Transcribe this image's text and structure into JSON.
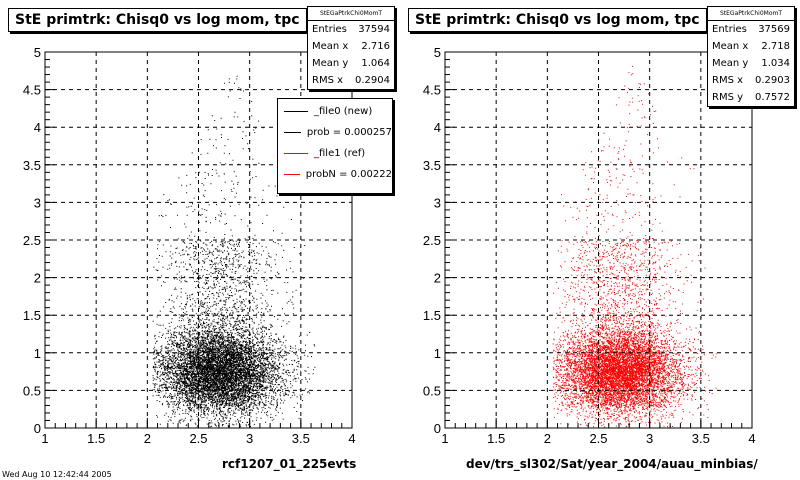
{
  "chart_data": [
    {
      "type": "scatter",
      "title": "StE primtrk: Chisq0 vs log mom, tpc",
      "xlabel": "rcf1207_01_225evts",
      "ylabel": "",
      "xlim": [
        1,
        4
      ],
      "ylim": [
        0,
        5
      ],
      "x_ticks": [
        "1",
        "1.5",
        "2",
        "2.5",
        "3",
        "3.5",
        "4"
      ],
      "y_ticks": [
        "0",
        "0.5",
        "1",
        "1.5",
        "2",
        "2.5",
        "3",
        "3.5",
        "4",
        "4.5",
        "5"
      ],
      "grid": true,
      "marker_color": "#000000",
      "distribution": {
        "x_range": [
          2.05,
          3.65
        ],
        "x_center": 2.7,
        "y_peak": 0.75,
        "y_max": 5
      },
      "stats": {
        "header": "StEGaPtrkChi0MomT",
        "rows": [
          {
            "label": "Entries",
            "value": "37594"
          },
          {
            "label": "Mean x",
            "value": "2.716"
          },
          {
            "label": "Mean y",
            "value": "1.064"
          },
          {
            "label": "RMS x",
            "value": "0.2904"
          }
        ]
      },
      "legend": {
        "placement": "top-right",
        "entries": [
          {
            "label": "_file0 (new)",
            "color": "#000000"
          },
          {
            "label": "prob = 0.000257",
            "color": "#000000"
          },
          {
            "label": "_file1 (ref)",
            "color": "#ff0000"
          },
          {
            "label": "probN = 0.00222",
            "color": "#ff0000"
          }
        ]
      }
    },
    {
      "type": "scatter",
      "title": "StE primtrk: Chisq0 vs log mom, tpc",
      "xlabel": "dev/trs_sl302/Sat/year_2004/auau_minbias/",
      "ylabel": "",
      "xlim": [
        1,
        4
      ],
      "ylim": [
        0,
        5
      ],
      "x_ticks": [
        "1",
        "1.5",
        "2",
        "2.5",
        "3",
        "3.5",
        "4"
      ],
      "y_ticks": [
        "0",
        "0.5",
        "1",
        "1.5",
        "2",
        "2.5",
        "3",
        "3.5",
        "4",
        "4.5",
        "5"
      ],
      "grid": true,
      "marker_color": "#ff0000",
      "distribution": {
        "x_range": [
          2.05,
          3.65
        ],
        "x_center": 2.7,
        "y_peak": 0.75,
        "y_max": 5
      },
      "stats": {
        "header": "StEGaPtrkChi0MomT",
        "rows": [
          {
            "label": "Entries",
            "value": "37569"
          },
          {
            "label": "Mean x",
            "value": "2.718"
          },
          {
            "label": "Mean y",
            "value": "1.034"
          },
          {
            "label": "RMS x",
            "value": "0.2903"
          },
          {
            "label": "RMS y",
            "value": "0.7572"
          }
        ]
      }
    }
  ],
  "footer": {
    "datestamp": "Wed Aug 10 12:42:44 2005"
  }
}
